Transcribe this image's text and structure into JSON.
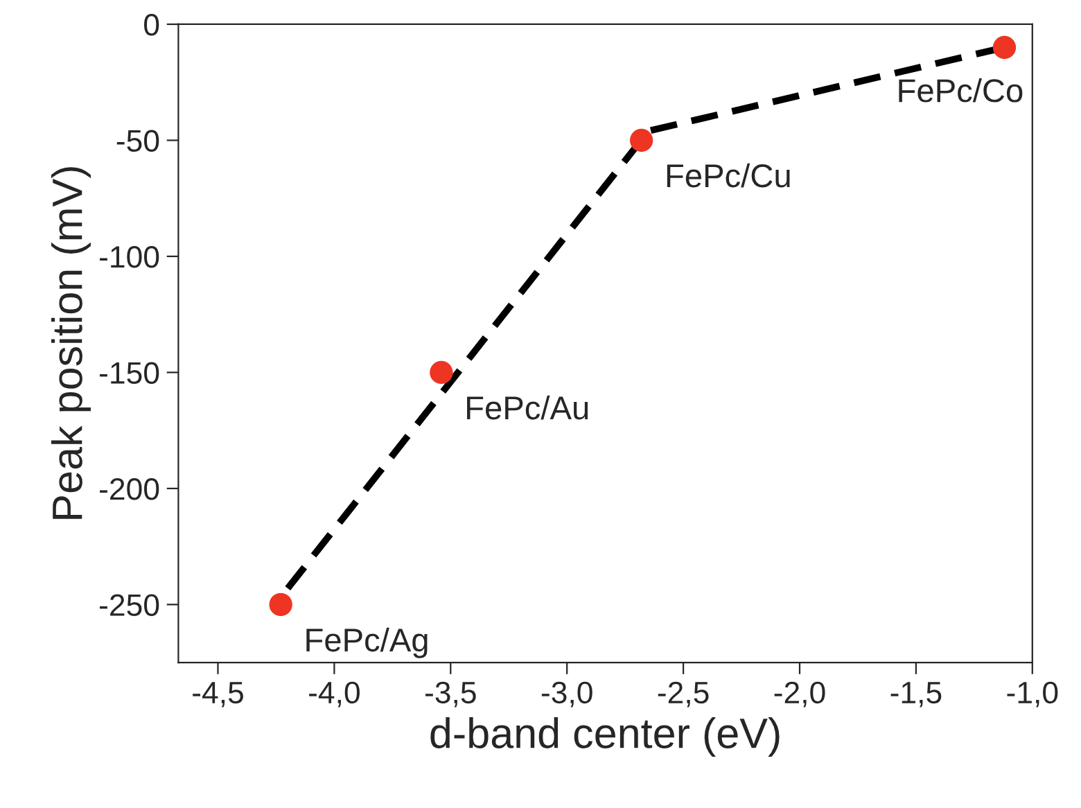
{
  "chart_data": {
    "type": "scatter",
    "xlabel": "d-band center (eV)",
    "ylabel": "Peak position (mV)",
    "series": [
      {
        "color": "#ee3524",
        "marker": "circle",
        "x": [
          -4.23,
          -3.54,
          -2.68,
          -1.12
        ],
        "values": [
          -250,
          -150,
          -50,
          -10
        ]
      },
      {
        "type": "line",
        "color": "#000000",
        "marker": "none",
        "line_style": "dashed",
        "x": [
          -4.2,
          -2.65,
          -1.12
        ],
        "values": [
          -243,
          -46,
          -10
        ]
      }
    ],
    "annotations": [
      {
        "text": "FePc/Ag",
        "x": -4.23,
        "y": -250
      },
      {
        "text": "FePc/Au",
        "x": -3.54,
        "y": -150
      },
      {
        "text": "FePc/Cu",
        "x": -2.68,
        "y": -50
      },
      {
        "text": "FePc/Co",
        "x": -1.12,
        "y": -10
      }
    ],
    "xlim": [
      -4.67,
      -1.0
    ],
    "ylim": [
      -275,
      0
    ],
    "xticks": [
      {
        "value": -4.5,
        "label": "-4,5"
      },
      {
        "value": -4.0,
        "label": "-4,0"
      },
      {
        "value": -3.5,
        "label": "-3,5"
      },
      {
        "value": -3.0,
        "label": "-3,0"
      },
      {
        "value": -2.5,
        "label": "-2,5"
      },
      {
        "value": -2.0,
        "label": "-2,0"
      },
      {
        "value": -1.5,
        "label": "-1,5"
      },
      {
        "value": -1.0,
        "label": "-1,0"
      }
    ],
    "yticks": [
      0,
      -50,
      -100,
      -150,
      -200,
      -250
    ],
    "grid": false,
    "legend": false
  }
}
